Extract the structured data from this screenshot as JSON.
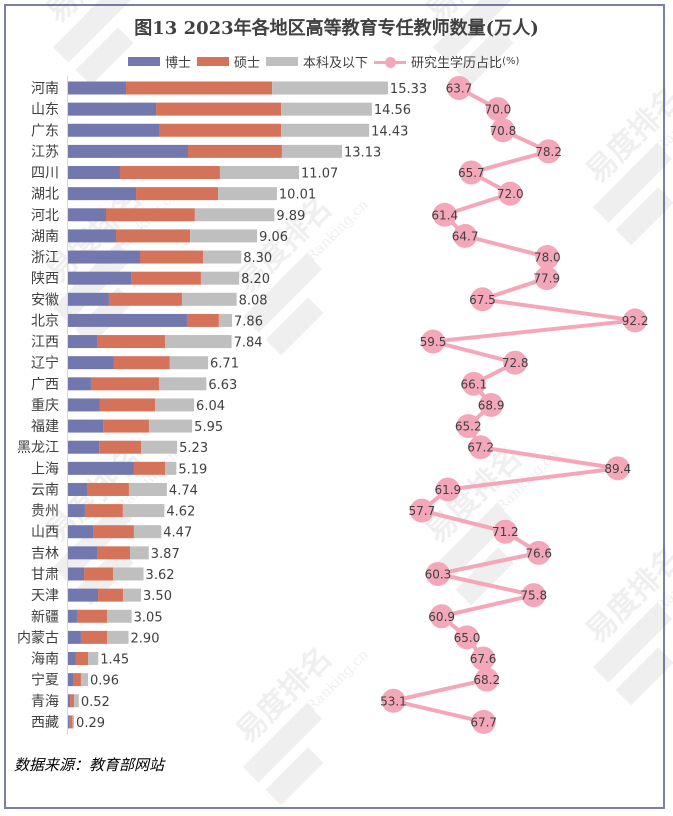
{
  "chart_data": {
    "type": "bar",
    "orientation": "horizontal-stacked-with-line",
    "title": "图13 2023年各地区高等教育专任教师数量(万人)",
    "legend": [
      "博士",
      "硕士",
      "本科及以下",
      "研究生学历占比"
    ],
    "legend_unit_suffix": "(%)",
    "legend_position": "top",
    "colors": {
      "doctor": "#7277ad",
      "master": "#d5735a",
      "bachelor": "#bfbfbf",
      "ratio_line": "#f4a7b9",
      "label_text": "#404040",
      "frame": "#7a7fa6"
    },
    "categories": [
      "河南",
      "山东",
      "广东",
      "江苏",
      "四川",
      "湖北",
      "河北",
      "湖南",
      "浙江",
      "陕西",
      "安徽",
      "北京",
      "江西",
      "辽宁",
      "广西",
      "重庆",
      "福建",
      "黑龙江",
      "上海",
      "云南",
      "贵州",
      "山西",
      "吉林",
      "甘肃",
      "天津",
      "新疆",
      "内蒙古",
      "海南",
      "宁夏",
      "青海",
      "西藏"
    ],
    "series": [
      {
        "name": "博士",
        "values": [
          2.78,
          4.22,
          4.36,
          5.75,
          2.49,
          3.26,
          1.82,
          2.3,
          3.45,
          3.02,
          1.96,
          5.7,
          1.39,
          2.2,
          1.1,
          1.53,
          1.68,
          1.49,
          3.16,
          0.91,
          0.81,
          1.2,
          1.39,
          0.77,
          1.44,
          0.43,
          0.62,
          0.38,
          0.24,
          0.1,
          0.05
        ]
      },
      {
        "name": "硕士",
        "values": [
          7.0,
          5.99,
          5.85,
          4.5,
          4.79,
          3.93,
          4.26,
          3.55,
          3.02,
          3.35,
          3.5,
          1.53,
          3.26,
          2.68,
          3.26,
          2.64,
          2.2,
          2.01,
          1.49,
          2.01,
          1.82,
          1.96,
          1.58,
          1.39,
          1.2,
          1.44,
          1.25,
          0.58,
          0.38,
          0.19,
          0.17
        ]
      },
      {
        "name": "本科及以下",
        "values": [
          5.55,
          4.35,
          4.22,
          2.88,
          3.79,
          2.82,
          3.81,
          3.21,
          1.83,
          1.83,
          2.62,
          0.63,
          3.19,
          1.83,
          2.27,
          1.87,
          2.07,
          1.73,
          0.54,
          1.82,
          1.99,
          1.31,
          0.9,
          1.46,
          0.86,
          1.18,
          1.03,
          0.49,
          0.34,
          0.23,
          0.07
        ]
      }
    ],
    "totals": [
      "15.33",
      "14.56",
      "14.43",
      "13.13",
      "11.07",
      "10.01",
      "9.89",
      "9.06",
      "8.30",
      "8.20",
      "8.08",
      "7.86",
      "7.84",
      "6.71",
      "6.63",
      "6.04",
      "5.95",
      "5.23",
      "5.19",
      "4.74",
      "4.62",
      "4.47",
      "3.87",
      "3.62",
      "3.50",
      "3.05",
      "2.90",
      "1.45",
      "0.96",
      "0.52",
      "0.29"
    ],
    "ratio": {
      "name": "研究生学历占比",
      "values": [
        "63.7",
        "70.0",
        "70.8",
        "78.2",
        "65.7",
        "72.0",
        "61.4",
        "64.7",
        "78.0",
        "77.9",
        "67.5",
        "92.2",
        "59.5",
        "72.8",
        "66.1",
        "68.9",
        "65.2",
        "67.2",
        "89.4",
        "61.9",
        "57.7",
        "71.2",
        "76.6",
        "60.3",
        "75.8",
        "60.9",
        "65.0",
        "67.6",
        "68.2",
        "53.1",
        "67.7"
      ]
    },
    "xlabel": "",
    "ylabel": "",
    "grid": false
  },
  "source_note": "数据来源：教育部网站",
  "watermark": {
    "brand": "易度排名",
    "site": "EDU Ranking.cn"
  }
}
